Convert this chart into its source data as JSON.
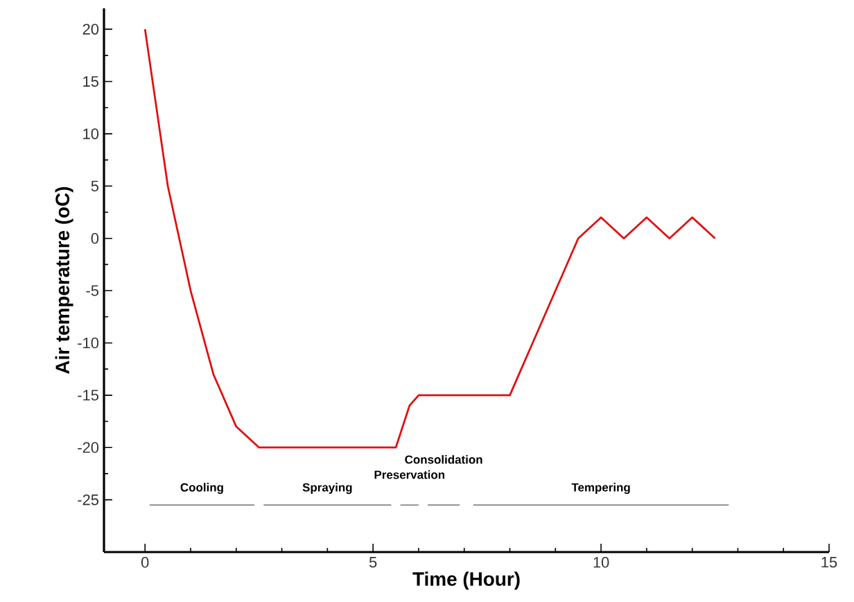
{
  "chart_data": {
    "type": "line",
    "xlabel": "Time (Hour)",
    "ylabel": "Air temperature (oC)",
    "xlim": [
      -0.9,
      15
    ],
    "ylim": [
      -30,
      22
    ],
    "xticks": [
      0,
      5,
      10,
      15
    ],
    "yticks": [
      -25,
      -20,
      -15,
      -10,
      -5,
      0,
      5,
      10,
      15,
      20
    ],
    "grid": false,
    "legend": false,
    "marker": "none",
    "line_style": "solid",
    "series": [
      {
        "color": "#e01010",
        "x": [
          0,
          0.5,
          1,
          1.5,
          2,
          2.5,
          5.5,
          5.8,
          6,
          8,
          9.5,
          10,
          10.5,
          11,
          11.5,
          12,
          12.5
        ],
        "values": [
          20,
          5,
          -5,
          -13,
          -18,
          -20,
          -20,
          -16,
          -15,
          -15,
          0,
          2,
          0,
          2,
          0,
          2,
          0
        ]
      },
      {
        "color": "#555555",
        "x": [
          0.1,
          2.4
        ],
        "values": [
          -25.5,
          -25.5
        ]
      },
      {
        "color": "#555555",
        "x": [
          2.6,
          5.4
        ],
        "values": [
          -25.5,
          -25.5
        ]
      },
      {
        "color": "#555555",
        "x": [
          5.6,
          6.0
        ],
        "values": [
          -25.5,
          -25.5
        ]
      },
      {
        "color": "#555555",
        "x": [
          6.2,
          6.9
        ],
        "values": [
          -25.5,
          -25.5
        ]
      },
      {
        "color": "#555555",
        "x": [
          7.2,
          12.8
        ],
        "values": [
          -25.5,
          -25.5
        ]
      }
    ],
    "annotations": [
      "Cooling",
      "Spraying",
      "Preservation",
      "Consolidation",
      "Tempering"
    ]
  }
}
